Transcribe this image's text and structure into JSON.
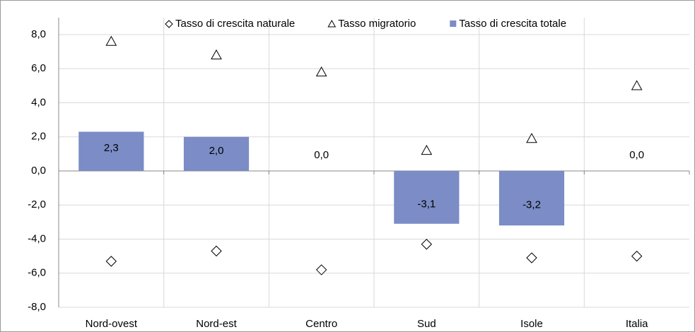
{
  "chart_data": {
    "type": "bar",
    "categories": [
      "Nord-ovest",
      "Nord-est",
      "Centro",
      "Sud",
      "Isole",
      "Italia"
    ],
    "series": [
      {
        "name": "Tasso di crescita naturale",
        "marker": "diamond",
        "color": "#ffffff",
        "values": [
          -5.3,
          -4.7,
          -5.8,
          -4.3,
          -5.1,
          -5.0
        ]
      },
      {
        "name": "Tasso migratorio",
        "marker": "triangle",
        "color": "#ffffff",
        "values": [
          7.6,
          6.8,
          5.8,
          1.2,
          1.9,
          5.0
        ]
      },
      {
        "name": "Tasso di crescita totale",
        "marker": "bar",
        "color": "#7b8cc6",
        "values": [
          2.3,
          2.0,
          0.0,
          -3.1,
          -3.2,
          0.0
        ],
        "value_labels": [
          "2,3",
          "2,0",
          "0,0",
          "-3,1",
          "-3,2",
          "0,0"
        ]
      }
    ],
    "ylim": [
      -8,
      8
    ],
    "yticks": [
      {
        "value": -8,
        "label": "-8,0"
      },
      {
        "value": -6,
        "label": "-6,0"
      },
      {
        "value": -4,
        "label": "-4,0"
      },
      {
        "value": -2,
        "label": "-2,0"
      },
      {
        "value": 0,
        "label": "0,0"
      },
      {
        "value": 2,
        "label": "2,0"
      },
      {
        "value": 4,
        "label": "4,0"
      },
      {
        "value": 6,
        "label": "6,0"
      },
      {
        "value": 8,
        "label": "8,0"
      }
    ],
    "grid": true
  }
}
